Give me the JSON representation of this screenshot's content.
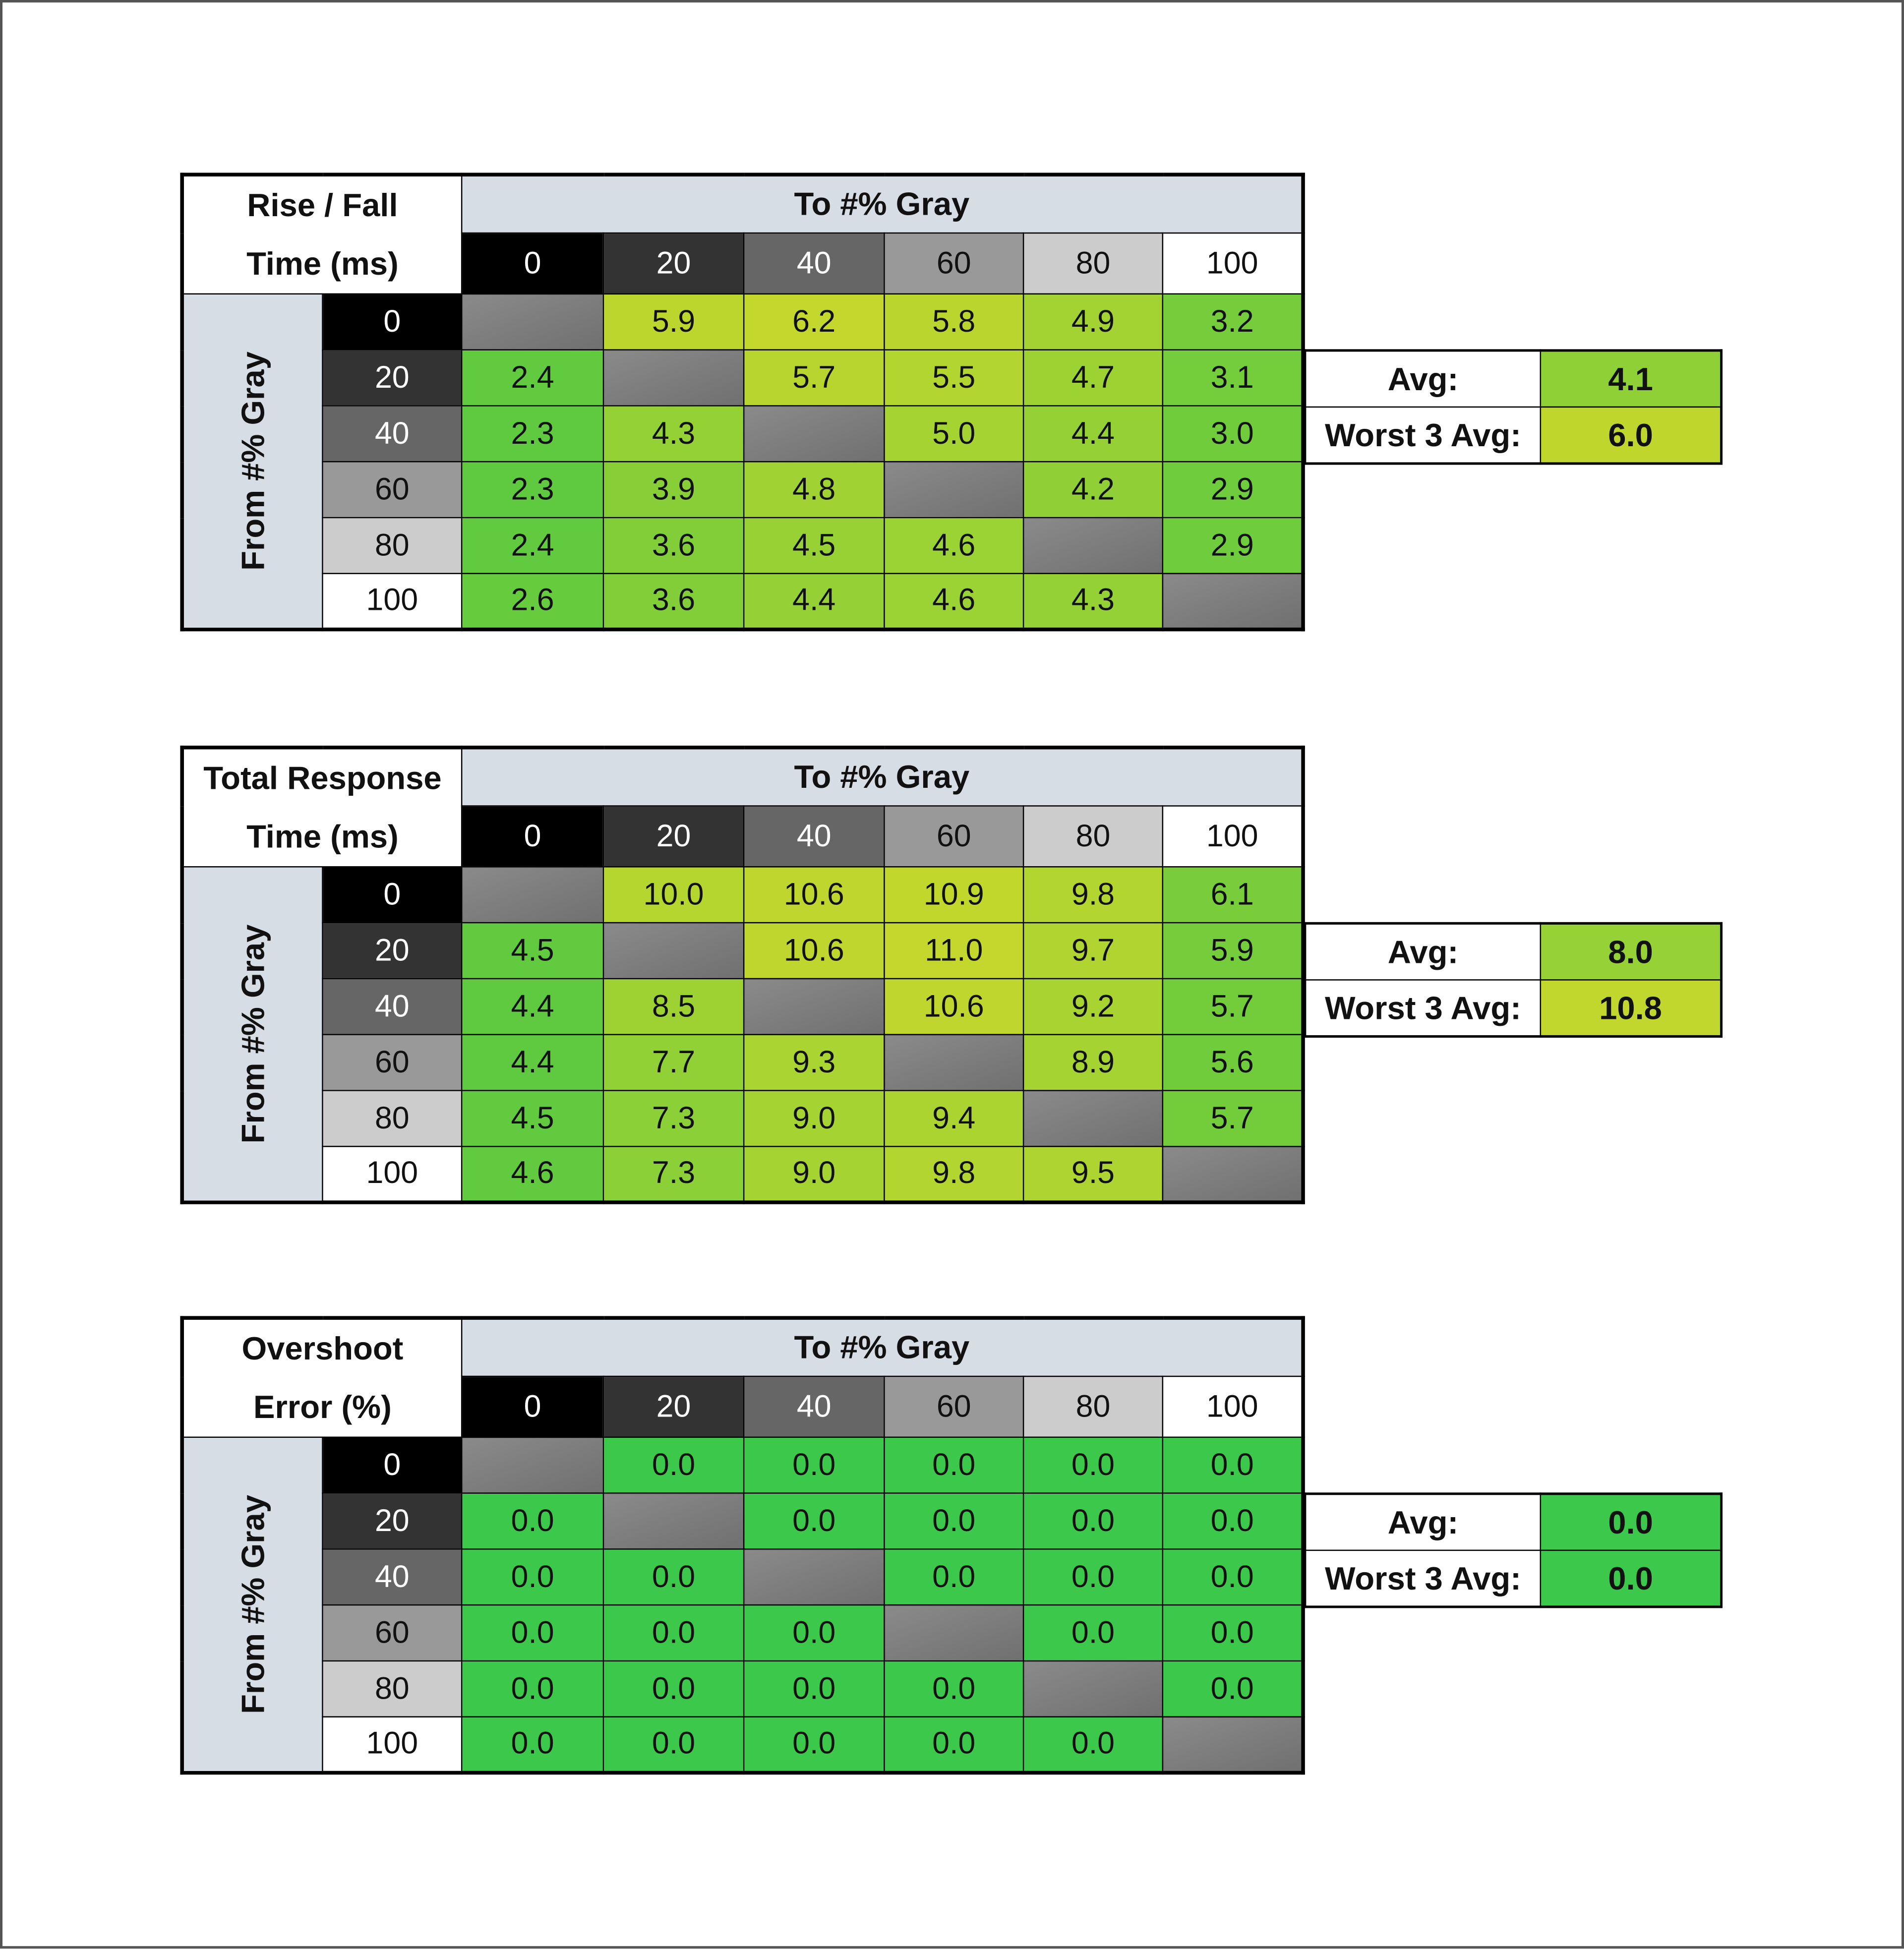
{
  "color_scale": {
    "low": "#5fca3f",
    "high": "#c4d72c",
    "zero": "#3cc84a",
    "diagonal": "#808080",
    "header_bg": "#d6dde5"
  },
  "gray_levels": [
    {
      "label": "0",
      "bg": "#000000",
      "fg": "#ffffff"
    },
    {
      "label": "20",
      "bg": "#333333",
      "fg": "#ffffff"
    },
    {
      "label": "40",
      "bg": "#666666",
      "fg": "#ffffff"
    },
    {
      "label": "60",
      "bg": "#999999",
      "fg": "#111111"
    },
    {
      "label": "80",
      "bg": "#cccccc",
      "fg": "#111111"
    },
    {
      "label": "100",
      "bg": "#ffffff",
      "fg": "#111111"
    }
  ],
  "tables": [
    {
      "title_line1": "Rise / Fall",
      "title_line2": "Time (ms)",
      "to_label": "To #% Gray",
      "from_label": "From #% Gray",
      "rows": [
        [
          null,
          "5.9",
          "6.2",
          "5.8",
          "4.9",
          "3.2"
        ],
        [
          "2.4",
          null,
          "5.7",
          "5.5",
          "4.7",
          "3.1"
        ],
        [
          "2.3",
          "4.3",
          null,
          "5.0",
          "4.4",
          "3.0"
        ],
        [
          "2.3",
          "3.9",
          "4.8",
          null,
          "4.2",
          "2.9"
        ],
        [
          "2.4",
          "3.6",
          "4.5",
          "4.6",
          null,
          "2.9"
        ],
        [
          "2.6",
          "3.6",
          "4.4",
          "4.6",
          "4.3",
          null
        ]
      ],
      "avg_label": "Avg:",
      "avg": "4.1",
      "worst_label": "Worst 3 Avg:",
      "worst": "6.0"
    },
    {
      "title_line1": "Total Response",
      "title_line2": "Time (ms)",
      "to_label": "To #% Gray",
      "from_label": "From #% Gray",
      "rows": [
        [
          null,
          "10.0",
          "10.6",
          "10.9",
          "9.8",
          "6.1"
        ],
        [
          "4.5",
          null,
          "10.6",
          "11.0",
          "9.7",
          "5.9"
        ],
        [
          "4.4",
          "8.5",
          null,
          "10.6",
          "9.2",
          "5.7"
        ],
        [
          "4.4",
          "7.7",
          "9.3",
          null,
          "8.9",
          "5.6"
        ],
        [
          "4.5",
          "7.3",
          "9.0",
          "9.4",
          null,
          "5.7"
        ],
        [
          "4.6",
          "7.3",
          "9.0",
          "9.8",
          "9.5",
          null
        ]
      ],
      "avg_label": "Avg:",
      "avg": "8.0",
      "worst_label": "Worst 3 Avg:",
      "worst": "10.8"
    },
    {
      "title_line1": "Overshoot",
      "title_line2": "Error (%)",
      "to_label": "To #% Gray",
      "from_label": "From #% Gray",
      "rows": [
        [
          null,
          "0.0",
          "0.0",
          "0.0",
          "0.0",
          "0.0"
        ],
        [
          "0.0",
          null,
          "0.0",
          "0.0",
          "0.0",
          "0.0"
        ],
        [
          "0.0",
          "0.0",
          null,
          "0.0",
          "0.0",
          "0.0"
        ],
        [
          "0.0",
          "0.0",
          "0.0",
          null,
          "0.0",
          "0.0"
        ],
        [
          "0.0",
          "0.0",
          "0.0",
          "0.0",
          null,
          "0.0"
        ],
        [
          "0.0",
          "0.0",
          "0.0",
          "0.0",
          "0.0",
          null
        ]
      ],
      "avg_label": "Avg:",
      "avg": "0.0",
      "worst_label": "Worst 3 Avg:",
      "worst": "0.0"
    }
  ]
}
